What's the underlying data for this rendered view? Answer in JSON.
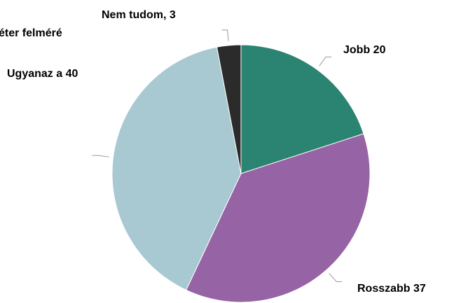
{
  "chart_data": {
    "type": "pie",
    "title": "éter felméré",
    "categories": [
      "Jobb",
      "Rosszabb",
      "Ugyanaz a",
      "Nem tudom"
    ],
    "values": [
      20,
      37,
      40,
      3
    ],
    "value_labels": [
      "Jobb 20",
      "Rosszabb 37",
      "Ugyanaz a 40",
      "Nem tudom, 3"
    ],
    "colors": [
      "#2a8471",
      "#9663a4",
      "#a8c9d1",
      "#2b2b2b"
    ]
  }
}
